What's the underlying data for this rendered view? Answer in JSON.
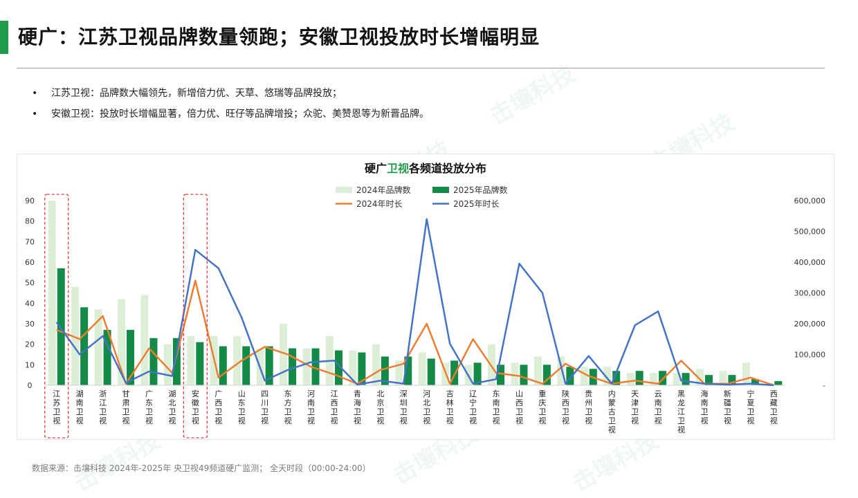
{
  "header": {
    "title": "硬广：江苏卫视品牌数量领跑；安徽卫视投放时长增幅明显"
  },
  "bullets": [
    {
      "marker": "•",
      "text": "江苏卫视：品牌数大幅领先，新增倍力优、天草、悠瑞等品牌投放；"
    },
    {
      "marker": "•",
      "text": "安徽卫视：投放时长增幅显著，倍力优、旺仔等品牌增投；众驼、美赞恩等为新晋品牌。"
    }
  ],
  "watermark": "击壤科技",
  "colors": {
    "brand_green": "#1f9b4a",
    "bar_2024": "#dcefd6",
    "bar_2025": "#138a45",
    "line_2024": "#ed7d31",
    "line_2025": "#4472c4",
    "highlight_box": "#e53935"
  },
  "chart_data": {
    "type": "bar",
    "title_parts": [
      "硬广",
      "卫视",
      "各频道投放分布"
    ],
    "categories": [
      "江苏卫视",
      "湖南卫视",
      "浙江卫视",
      "甘肃卫视",
      "广东卫视",
      "湖北卫视",
      "安徽卫视",
      "广西卫视",
      "山东卫视",
      "四川卫视",
      "东方卫视",
      "河南卫视",
      "江西卫视",
      "青海卫视",
      "北京卫视",
      "深圳卫视",
      "河北卫视",
      "吉林卫视",
      "辽宁卫视",
      "东南卫视",
      "山西卫视",
      "重庆卫视",
      "陕西卫视",
      "贵州卫视",
      "内蒙古卫视",
      "天津卫视",
      "云南卫视",
      "黑龙江卫视",
      "海南卫视",
      "新疆卫视",
      "宁夏卫视",
      "西藏卫视"
    ],
    "highlighted": [
      "江苏卫视",
      "安徽卫视"
    ],
    "series": [
      {
        "name": "2024年品牌数",
        "kind": "bar",
        "axis": "left",
        "values": [
          90,
          48,
          37,
          42,
          44,
          20,
          24,
          24,
          24,
          18,
          30,
          18,
          24,
          17,
          20,
          12,
          16,
          11,
          10,
          20,
          11,
          14,
          14,
          9,
          9,
          6,
          6,
          6,
          8,
          7,
          11,
          1
        ]
      },
      {
        "name": "2025年品牌数",
        "kind": "bar",
        "axis": "left",
        "values": [
          57,
          38,
          27,
          27,
          23,
          23,
          21,
          19,
          19,
          19,
          18,
          18,
          17,
          16,
          14,
          14,
          13,
          12,
          11,
          10,
          10,
          10,
          9,
          8,
          7,
          7,
          7,
          6,
          5,
          5,
          3,
          2
        ]
      },
      {
        "name": "2024年时长",
        "kind": "line",
        "axis": "right",
        "values": [
          180000,
          150000,
          225000,
          5000,
          120000,
          40000,
          340000,
          25000,
          80000,
          125000,
          100000,
          60000,
          35000,
          5000,
          50000,
          70000,
          200000,
          5000,
          150000,
          40000,
          30000,
          5000,
          70000,
          30000,
          5000,
          15000,
          5000,
          80000,
          5000,
          5000,
          25000,
          0
        ]
      },
      {
        "name": "2025年时长",
        "kind": "line",
        "axis": "right",
        "values": [
          205000,
          100000,
          160000,
          8000,
          45000,
          30000,
          440000,
          380000,
          220000,
          15000,
          50000,
          75000,
          80000,
          2000,
          15000,
          5000,
          540000,
          135000,
          5000,
          20000,
          395000,
          300000,
          5000,
          95000,
          5000,
          195000,
          240000,
          15000,
          5000,
          2000,
          5000,
          0
        ]
      }
    ],
    "ylim_left": [
      0,
      90
    ],
    "yticks_left": [
      "0",
      "10",
      "20",
      "30",
      "40",
      "50",
      "60",
      "70",
      "80",
      "90"
    ],
    "ylim_right": [
      0,
      600000
    ],
    "yticks_right": [
      "-",
      "100,000",
      "200,000",
      "300,000",
      "400,000",
      "500,000",
      "600,000"
    ],
    "legend_position": "top-center",
    "grid": false
  },
  "footer": {
    "source": "数据来源：击壤科技  2024年-2025年 央卫视49频道硬广监测； 全天时段（00:00-24:00）"
  }
}
